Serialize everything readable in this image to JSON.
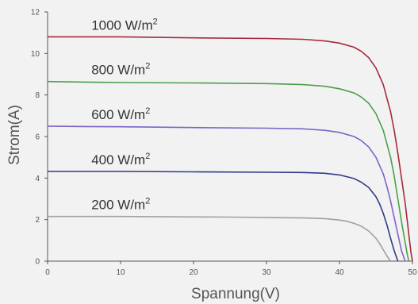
{
  "chart_data": {
    "type": "line",
    "title": "",
    "xlabel": "Spannung(V)",
    "ylabel": "Strom(A)",
    "xlim": [
      0,
      50
    ],
    "ylim": [
      0,
      12
    ],
    "xticks": [
      0,
      10,
      20,
      30,
      40,
      50
    ],
    "yticks": [
      0,
      2,
      4,
      6,
      8,
      10,
      12
    ],
    "grid": false,
    "legend": "inline labels above each curve",
    "series": [
      {
        "name": "1000 W/m2",
        "label_main": "1000 W/m",
        "label_sup": "2",
        "color": "#a52a3a",
        "x": [
          0,
          5,
          10,
          20,
          30,
          35,
          38,
          40,
          42,
          43,
          44,
          45,
          46,
          47,
          47.5,
          48,
          48.5,
          49,
          49.3,
          49.6,
          49.8,
          50
        ],
        "y": [
          10.8,
          10.8,
          10.8,
          10.75,
          10.72,
          10.68,
          10.6,
          10.5,
          10.3,
          10.1,
          9.8,
          9.3,
          8.5,
          7.2,
          6.3,
          5.2,
          4.0,
          2.8,
          1.9,
          1.0,
          0.4,
          0
        ]
      },
      {
        "name": "800 W/m2",
        "label_main": "800 W/m",
        "label_sup": "2",
        "color": "#4aa04a",
        "x": [
          0,
          5,
          10,
          20,
          30,
          35,
          38,
          40,
          42,
          43,
          44,
          45,
          46,
          47,
          47.5,
          48,
          48.5,
          49,
          49.3,
          49.5
        ],
        "y": [
          8.65,
          8.62,
          8.6,
          8.58,
          8.55,
          8.5,
          8.42,
          8.3,
          8.1,
          7.9,
          7.6,
          7.1,
          6.3,
          5.0,
          4.1,
          3.0,
          1.9,
          0.9,
          0.3,
          0
        ]
      },
      {
        "name": "600 W/m2",
        "label_main": "600 W/m",
        "label_sup": "2",
        "color": "#7d63c8",
        "x": [
          0,
          5,
          10,
          20,
          30,
          35,
          38,
          40,
          42,
          43,
          44,
          45,
          46,
          46.5,
          47,
          47.5,
          48,
          48.5,
          49
        ],
        "y": [
          6.5,
          6.48,
          6.47,
          6.43,
          6.4,
          6.37,
          6.3,
          6.2,
          6.0,
          5.8,
          5.5,
          5.0,
          4.2,
          3.6,
          2.9,
          2.1,
          1.3,
          0.5,
          0
        ]
      },
      {
        "name": "400 W/m2",
        "label_main": "400 W/m",
        "label_sup": "2",
        "color": "#2e3a8c",
        "x": [
          0,
          5,
          10,
          20,
          30,
          35,
          38,
          40,
          42,
          43,
          44,
          45,
          45.5,
          46,
          46.5,
          47,
          47.5,
          48
        ],
        "y": [
          4.32,
          4.32,
          4.32,
          4.3,
          4.28,
          4.27,
          4.23,
          4.15,
          3.98,
          3.8,
          3.55,
          3.1,
          2.75,
          2.3,
          1.75,
          1.1,
          0.5,
          0
        ]
      },
      {
        "name": "200 W/m2",
        "label_main": "200 W/m",
        "label_sup": "2",
        "color": "#a0a0a0",
        "x": [
          0,
          5,
          10,
          20,
          25,
          30,
          35,
          38,
          40,
          41,
          42,
          43,
          44,
          45,
          45.5,
          46,
          46.5,
          47
        ],
        "y": [
          2.15,
          2.15,
          2.15,
          2.13,
          2.12,
          2.1,
          2.08,
          2.05,
          1.98,
          1.92,
          1.82,
          1.68,
          1.45,
          1.1,
          0.85,
          0.55,
          0.25,
          0
        ]
      }
    ]
  }
}
